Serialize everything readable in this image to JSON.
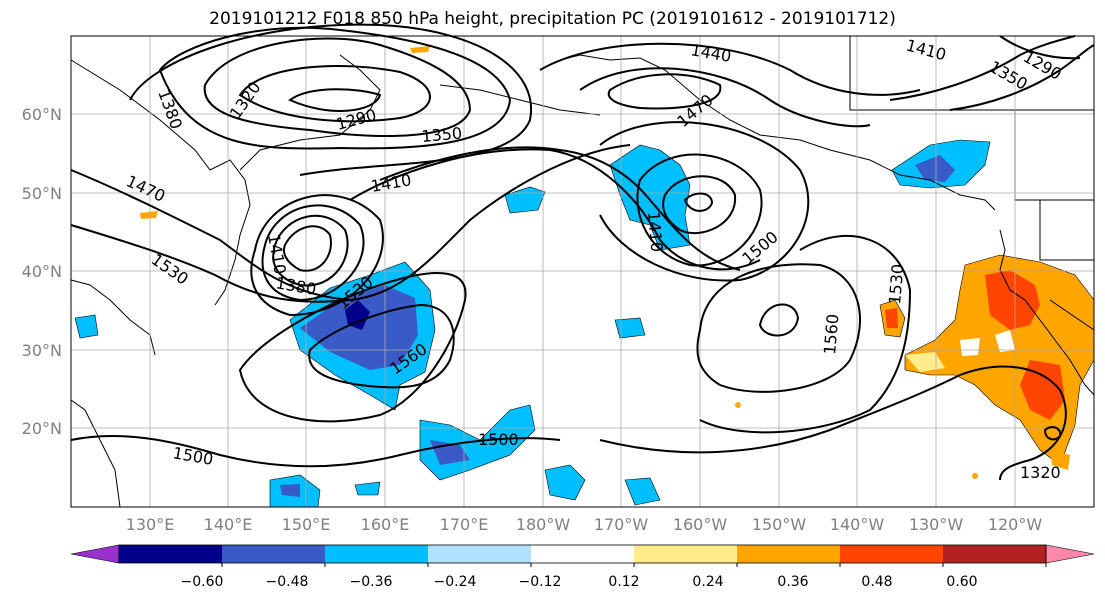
{
  "title": "2019101212 F018 850 hPa height, precipitation PC (2019101612 - 2019101712)",
  "map": {
    "lon_labels": [
      "130°E",
      "140°E",
      "150°E",
      "160°E",
      "170°E",
      "180°W",
      "170°W",
      "160°W",
      "150°W",
      "140°W",
      "130°W",
      "120°W"
    ],
    "lat_labels": [
      "60°N",
      "50°N",
      "40°N",
      "30°N",
      "20°N"
    ],
    "contour_labels": [
      "1440",
      "1410",
      "1320",
      "1290",
      "1350",
      "1380",
      "1470",
      "1410",
      "1470",
      "1410",
      "1530",
      "1410",
      "1380",
      "1530",
      "1560",
      "1500",
      "1560",
      "1530",
      "1500",
      "1500",
      "1320",
      "1290",
      "1350"
    ]
  },
  "colorbar": {
    "ticks": [
      "−0.60",
      "−0.48",
      "−0.36",
      "−0.24",
      "−0.12",
      "0.12",
      "0.24",
      "0.36",
      "0.48",
      "0.60"
    ],
    "colors": [
      "#9932CC",
      "#00008B",
      "#3A5BC7",
      "#00BFFF",
      "#B0E2FF",
      "#FFFFFF",
      "#FFEC8B",
      "#FFA500",
      "#FF4500",
      "#B22222",
      "#FF88AA"
    ]
  }
}
